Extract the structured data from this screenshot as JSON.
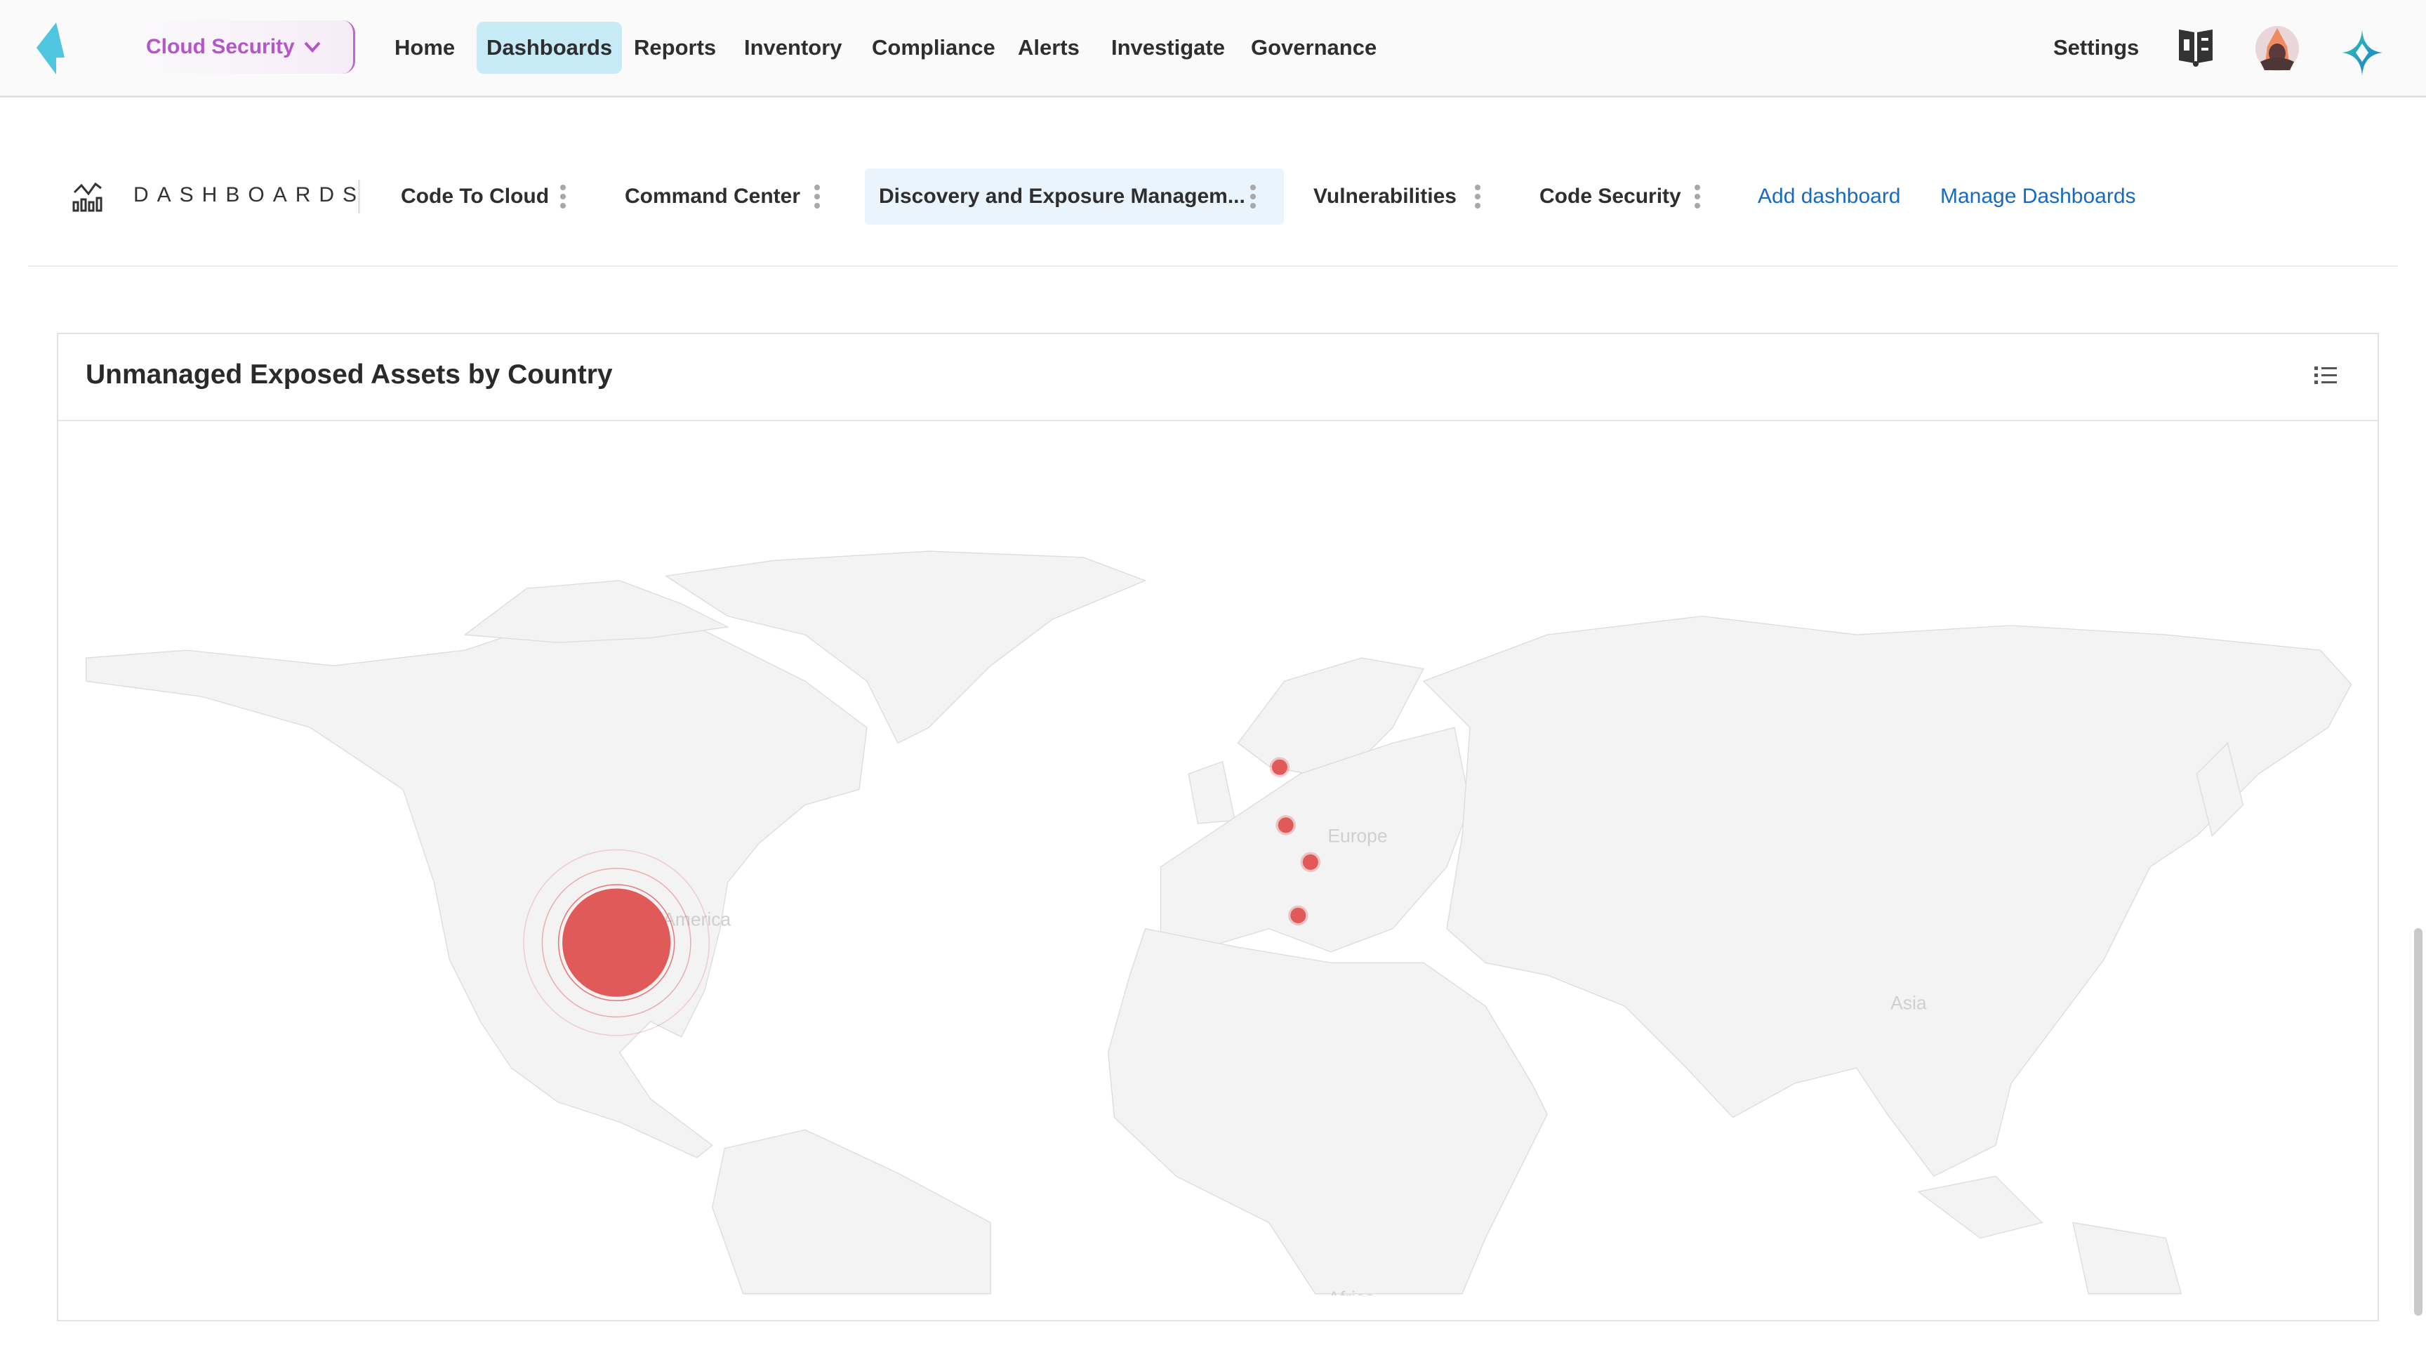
{
  "topnav": {
    "product_switcher": "Cloud Security",
    "items": [
      {
        "label": "Home",
        "active": false
      },
      {
        "label": "Dashboards",
        "active": true
      },
      {
        "label": "Reports",
        "active": false
      },
      {
        "label": "Inventory",
        "active": false
      },
      {
        "label": "Compliance",
        "active": false
      },
      {
        "label": "Alerts",
        "active": false
      },
      {
        "label": "Investigate",
        "active": false
      },
      {
        "label": "Governance",
        "active": false
      }
    ],
    "settings": "Settings",
    "icons": [
      "app-logo-icon",
      "docs-book-icon",
      "user-avatar",
      "ai-assistant-star-icon"
    ]
  },
  "dashboards": {
    "section_label": "DASHBOARDS",
    "tabs": [
      {
        "label": "Code To Cloud",
        "active": false
      },
      {
        "label": "Command Center",
        "active": false
      },
      {
        "label": "Discovery and Exposure Managem...",
        "active": true
      },
      {
        "label": "Vulnerabilities",
        "active": false
      },
      {
        "label": "Code Security",
        "active": false
      }
    ],
    "add_dashboard": "Add dashboard",
    "manage_dashboards": "Manage Dashboards"
  },
  "widget": {
    "title": "Unmanaged Exposed Assets by Country",
    "map_labels": [
      "America",
      "Europe",
      "Asia",
      "Africa"
    ],
    "marker_color": "#e05a5a",
    "markers": [
      {
        "lon": -98,
        "lat": 39,
        "relative_size": "large"
      },
      {
        "lon": 9.5,
        "lat": 56,
        "relative_size": "small"
      },
      {
        "lon": 10.5,
        "lat": 51,
        "relative_size": "small"
      },
      {
        "lon": 14.5,
        "lat": 47.5,
        "relative_size": "small"
      },
      {
        "lon": 12.5,
        "lat": 42,
        "relative_size": "small"
      }
    ]
  },
  "colors": {
    "accent_purple": "#b455c8",
    "active_nav_bg": "#c6eaf6",
    "link_blue": "#1769c4"
  }
}
